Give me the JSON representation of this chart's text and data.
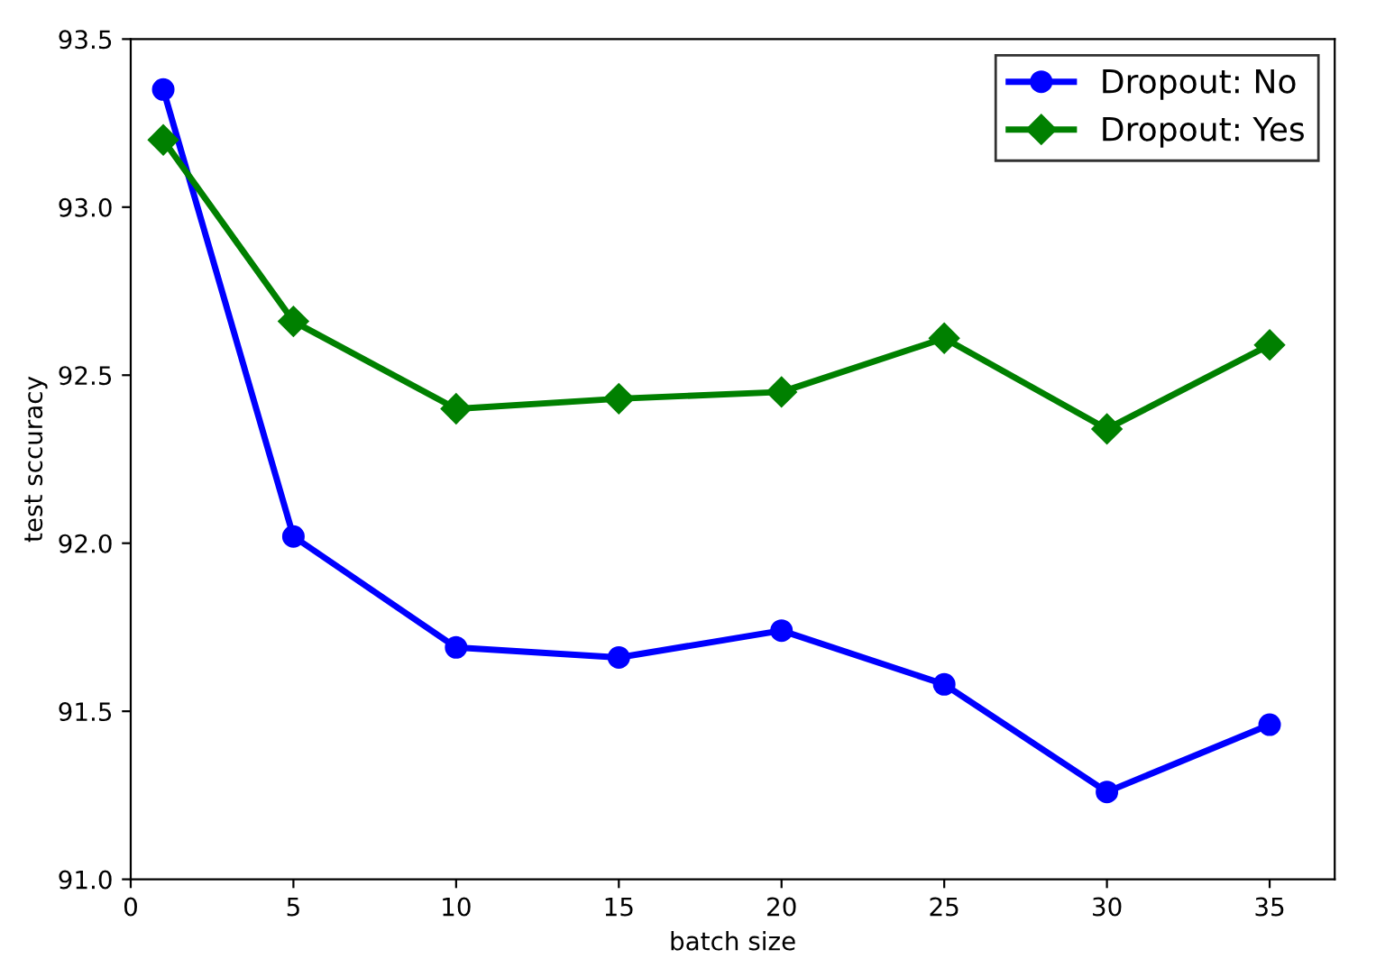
{
  "chart_data": {
    "type": "line",
    "xlabel": "batch size",
    "ylabel": "test sccuracy",
    "x": [
      1,
      5,
      10,
      15,
      20,
      25,
      30,
      35
    ],
    "series": [
      {
        "name": "Dropout: No",
        "color": "#0000ff",
        "marker": "circle",
        "values": [
          93.35,
          92.02,
          91.69,
          91.66,
          91.74,
          91.58,
          91.26,
          91.46
        ]
      },
      {
        "name": "Dropout: Yes",
        "color": "#008000",
        "marker": "diamond",
        "values": [
          93.2,
          92.66,
          92.4,
          92.43,
          92.45,
          92.61,
          92.34,
          92.59
        ]
      }
    ],
    "xlim": [
      0,
      37
    ],
    "xticks": [
      0,
      5,
      10,
      15,
      20,
      25,
      30,
      35
    ],
    "ylim": [
      91.0,
      93.5
    ],
    "yticks": [
      {
        "value": 91.0,
        "label": "91.0"
      },
      {
        "value": 91.5,
        "label": "91.5"
      },
      {
        "value": 92.0,
        "label": "92.0"
      },
      {
        "value": 92.5,
        "label": "92.5"
      },
      {
        "value": 93.0,
        "label": "93.0"
      },
      {
        "value": 93.5,
        "label": "93.5"
      }
    ],
    "grid": false,
    "legend": "top right",
    "line_style": "solid"
  }
}
